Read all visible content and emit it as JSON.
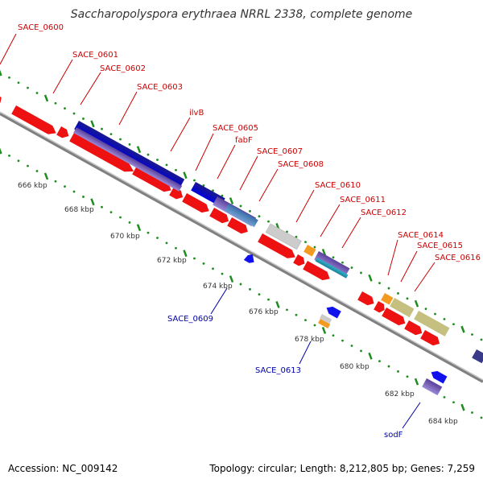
{
  "title": "Saccharopolyspora erythraea NRRL 2338, complete genome",
  "accession": "Accession: NC_009142",
  "topology": "Topology: circular; Length: 8,212,805 bp; Genes: 7,259",
  "colors": {
    "forward_label": "#cc0000",
    "reverse_label": "#0000aa",
    "gene_red": "#ee1111",
    "backbone": "#9a9a9a",
    "tick": "#1e8c1e"
  },
  "gene_labels_forward": [
    "SACE_0600",
    "SACE_0601",
    "SACE_0602",
    "SACE_0603",
    "ilvB",
    "SACE_0605",
    "fabF",
    "SACE_0607",
    "SACE_0608",
    "SACE_0610",
    "SACE_0611",
    "SACE_0612",
    "SACE_0614",
    "SACE_0615",
    "SACE_0616"
  ],
  "gene_labels_reverse": [
    "SACE_0609",
    "SACE_0613",
    "sodF"
  ],
  "kbp_ticks": [
    "666 kbp",
    "668 kbp",
    "670 kbp",
    "672 kbp",
    "674 kbp",
    "676 kbp",
    "678 kbp",
    "680 kbp",
    "682 kbp",
    "684 kbp"
  ]
}
